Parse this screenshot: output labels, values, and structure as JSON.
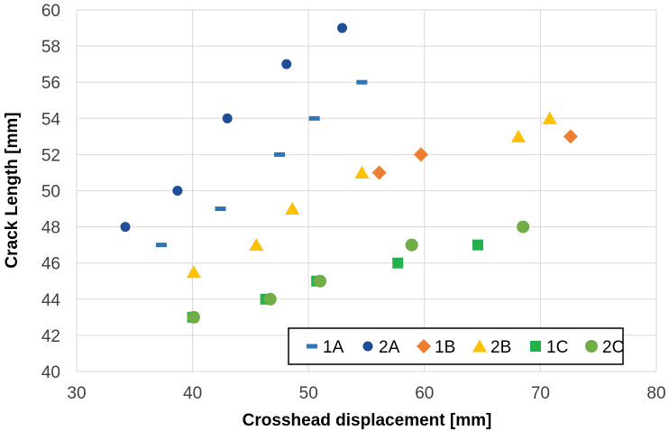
{
  "chart_data": {
    "type": "scatter",
    "title": "",
    "xlabel": "Crosshead displacement [mm]",
    "ylabel": "Crack Length [mm]",
    "xlim": [
      30,
      80
    ],
    "ylim": [
      40,
      60
    ],
    "xticks": [
      "30",
      "40",
      "50",
      "60",
      "70",
      "80"
    ],
    "yticks": [
      "40",
      "42",
      "44",
      "46",
      "48",
      "50",
      "52",
      "54",
      "56",
      "58",
      "60"
    ],
    "grid": "horizontal",
    "legend_position": "bottom-right",
    "series": [
      {
        "name": "1A",
        "marker": "dash",
        "color": "#2e75b6",
        "points": [
          [
            37.3,
            47
          ],
          [
            42.4,
            49
          ],
          [
            47.5,
            52
          ],
          [
            50.5,
            54
          ],
          [
            54.6,
            56
          ]
        ]
      },
      {
        "name": "2A",
        "marker": "circle",
        "color": "#1f4e99",
        "points": [
          [
            34.2,
            48
          ],
          [
            38.7,
            50
          ],
          [
            43.0,
            54
          ],
          [
            48.1,
            57
          ],
          [
            52.9,
            59
          ]
        ]
      },
      {
        "name": "1B",
        "marker": "diamond",
        "color": "#ed7d31",
        "points": [
          [
            56.1,
            51
          ],
          [
            59.7,
            52
          ],
          [
            72.6,
            53
          ]
        ]
      },
      {
        "name": "2B",
        "marker": "triangle",
        "color": "#ffc000",
        "points": [
          [
            40.1,
            45.5
          ],
          [
            45.5,
            47
          ],
          [
            48.6,
            49
          ],
          [
            54.6,
            51
          ],
          [
            68.1,
            53
          ],
          [
            70.8,
            54
          ]
        ]
      },
      {
        "name": "1C",
        "marker": "square",
        "color": "#21b24b",
        "points": [
          [
            40.0,
            43
          ],
          [
            46.3,
            44
          ],
          [
            50.7,
            45
          ],
          [
            57.7,
            46
          ],
          [
            64.6,
            47
          ]
        ]
      },
      {
        "name": "2C",
        "marker": "circle",
        "color": "#70ad47",
        "points": [
          [
            40.1,
            43
          ],
          [
            46.7,
            44
          ],
          [
            51.0,
            45
          ],
          [
            58.9,
            47
          ],
          [
            68.5,
            48
          ]
        ]
      }
    ]
  }
}
